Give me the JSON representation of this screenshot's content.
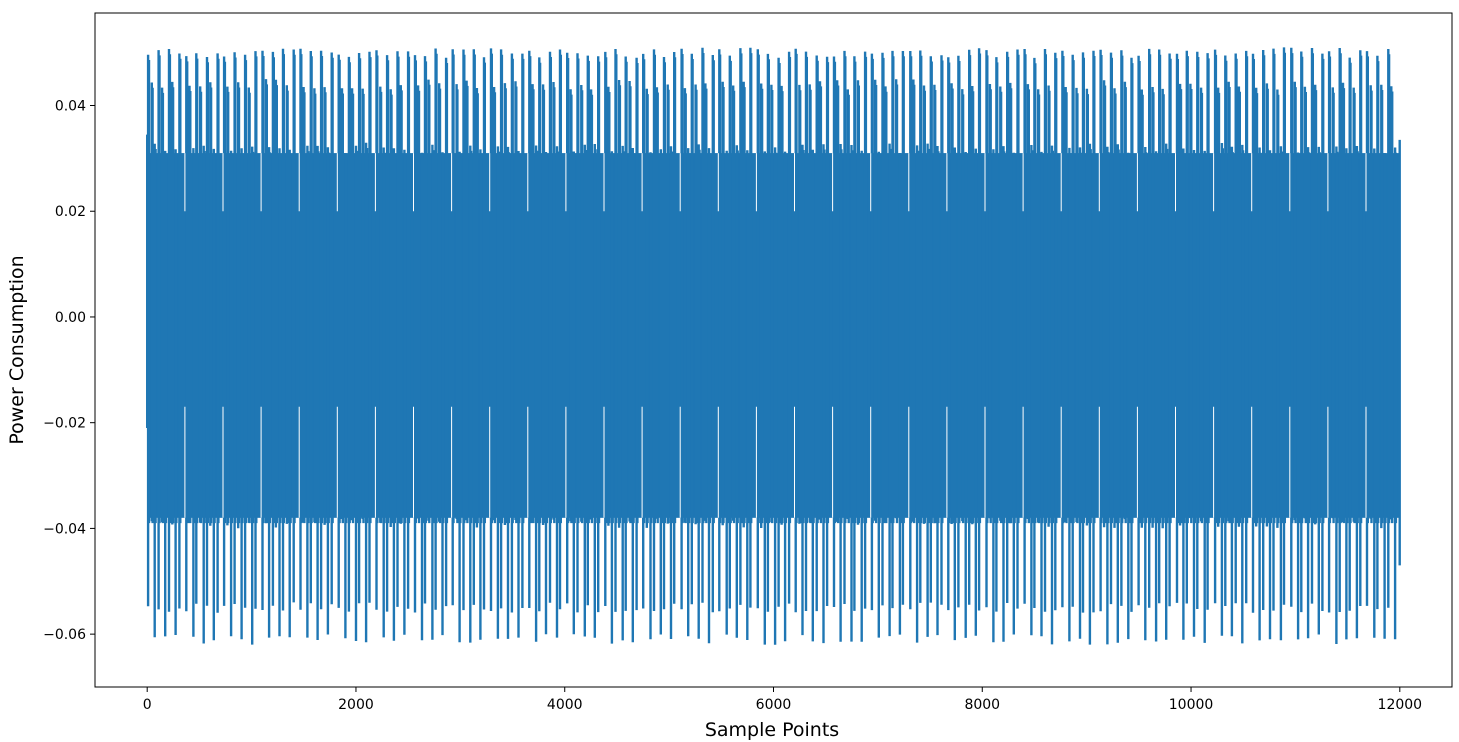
{
  "chart_data": {
    "type": "line",
    "title": "",
    "xlabel": "Sample Points",
    "ylabel": "Power Consumption",
    "xlim": [
      -500,
      12500
    ],
    "ylim": [
      -0.07,
      0.0575
    ],
    "grid": false,
    "x_ticks": [
      0,
      2000,
      4000,
      6000,
      8000,
      10000,
      12000
    ],
    "y_ticks": [
      -0.06,
      -0.04,
      -0.02,
      0.0,
      0.02,
      0.04
    ],
    "x_tick_labels": [
      "0",
      "2000",
      "4000",
      "6000",
      "8000",
      "10000",
      "12000"
    ],
    "y_tick_labels": [
      "−0.06",
      "−0.04",
      "−0.02",
      "0.00",
      "0.02",
      "0.04"
    ],
    "series": [
      {
        "color": "#1f77b4",
        "n_points": 12000,
        "x_range": [
          0,
          11999
        ],
        "min": -0.0635,
        "max": 0.051,
        "dense_band": [
          -0.038,
          0.031
        ],
        "segment_count": 33,
        "segment_period": 365,
        "segment_peaks_high": [
          0.05,
          0.044,
          0.032
        ],
        "segment_peaks_low": [
          -0.061,
          -0.055,
          -0.039
        ],
        "edge_values": {
          "start": 0.0345,
          "end": -0.047
        }
      }
    ]
  }
}
